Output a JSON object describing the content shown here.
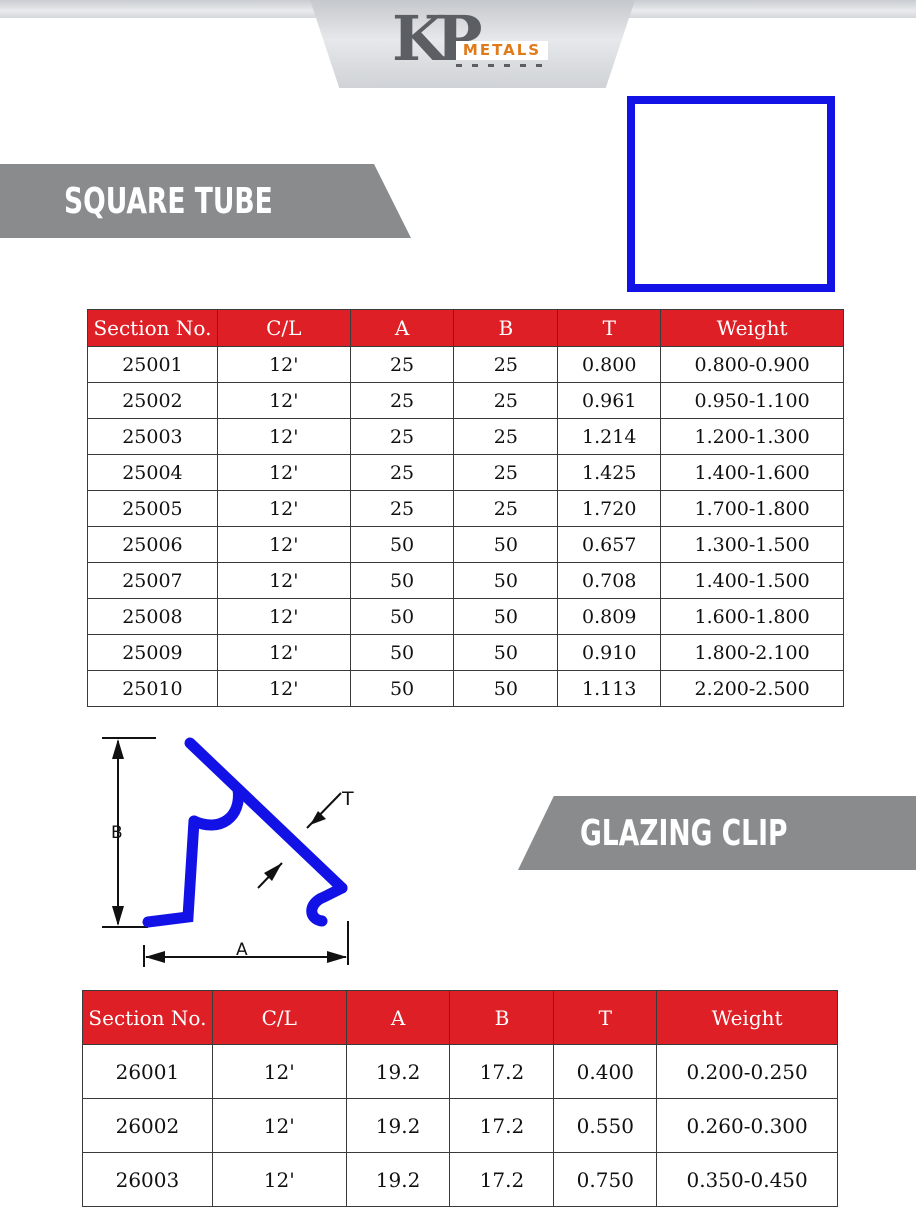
{
  "header": {
    "logo_mark": "KP",
    "logo_word": "METALS"
  },
  "square_tube": {
    "title": "SQUARE TUBE",
    "columns": [
      "Section No.",
      "C/L",
      "A",
      "B",
      "T",
      "Weight"
    ],
    "rows": [
      [
        "25001",
        "12'",
        "25",
        "25",
        "0.800",
        "0.800-0.900"
      ],
      [
        "25002",
        "12'",
        "25",
        "25",
        "0.961",
        "0.950-1.100"
      ],
      [
        "25003",
        "12'",
        "25",
        "25",
        "1.214",
        "1.200-1.300"
      ],
      [
        "25004",
        "12'",
        "25",
        "25",
        "1.425",
        "1.400-1.600"
      ],
      [
        "25005",
        "12'",
        "25",
        "25",
        "1.720",
        "1.700-1.800"
      ],
      [
        "25006",
        "12'",
        "50",
        "50",
        "0.657",
        "1.300-1.500"
      ],
      [
        "25007",
        "12'",
        "50",
        "50",
        "0.708",
        "1.400-1.500"
      ],
      [
        "25008",
        "12'",
        "50",
        "50",
        "0.809",
        "1.600-1.800"
      ],
      [
        "25009",
        "12'",
        "50",
        "50",
        "0.910",
        "1.800-2.100"
      ],
      [
        "25010",
        "12'",
        "50",
        "50",
        "1.113",
        "2.200-2.500"
      ]
    ]
  },
  "glazing_clip": {
    "title": "GLAZING CLIP",
    "dim_labels": {
      "b": "B",
      "t": "T",
      "a": "A"
    },
    "columns": [
      "Section No.",
      "C/L",
      "A",
      "B",
      "T",
      "Weight"
    ],
    "rows": [
      [
        "26001",
        "12'",
        "19.2",
        "17.2",
        "0.400",
        "0.200-0.250"
      ],
      [
        "26002",
        "12'",
        "19.2",
        "17.2",
        "0.550",
        "0.260-0.300"
      ],
      [
        "26003",
        "12'",
        "19.2",
        "17.2",
        "0.750",
        "0.350-0.450"
      ]
    ]
  },
  "colors": {
    "header_red": "#df1f26",
    "profile_blue": "#1212e6",
    "banner_grey": "#8a8b8d",
    "logo_orange": "#e07b1a"
  }
}
